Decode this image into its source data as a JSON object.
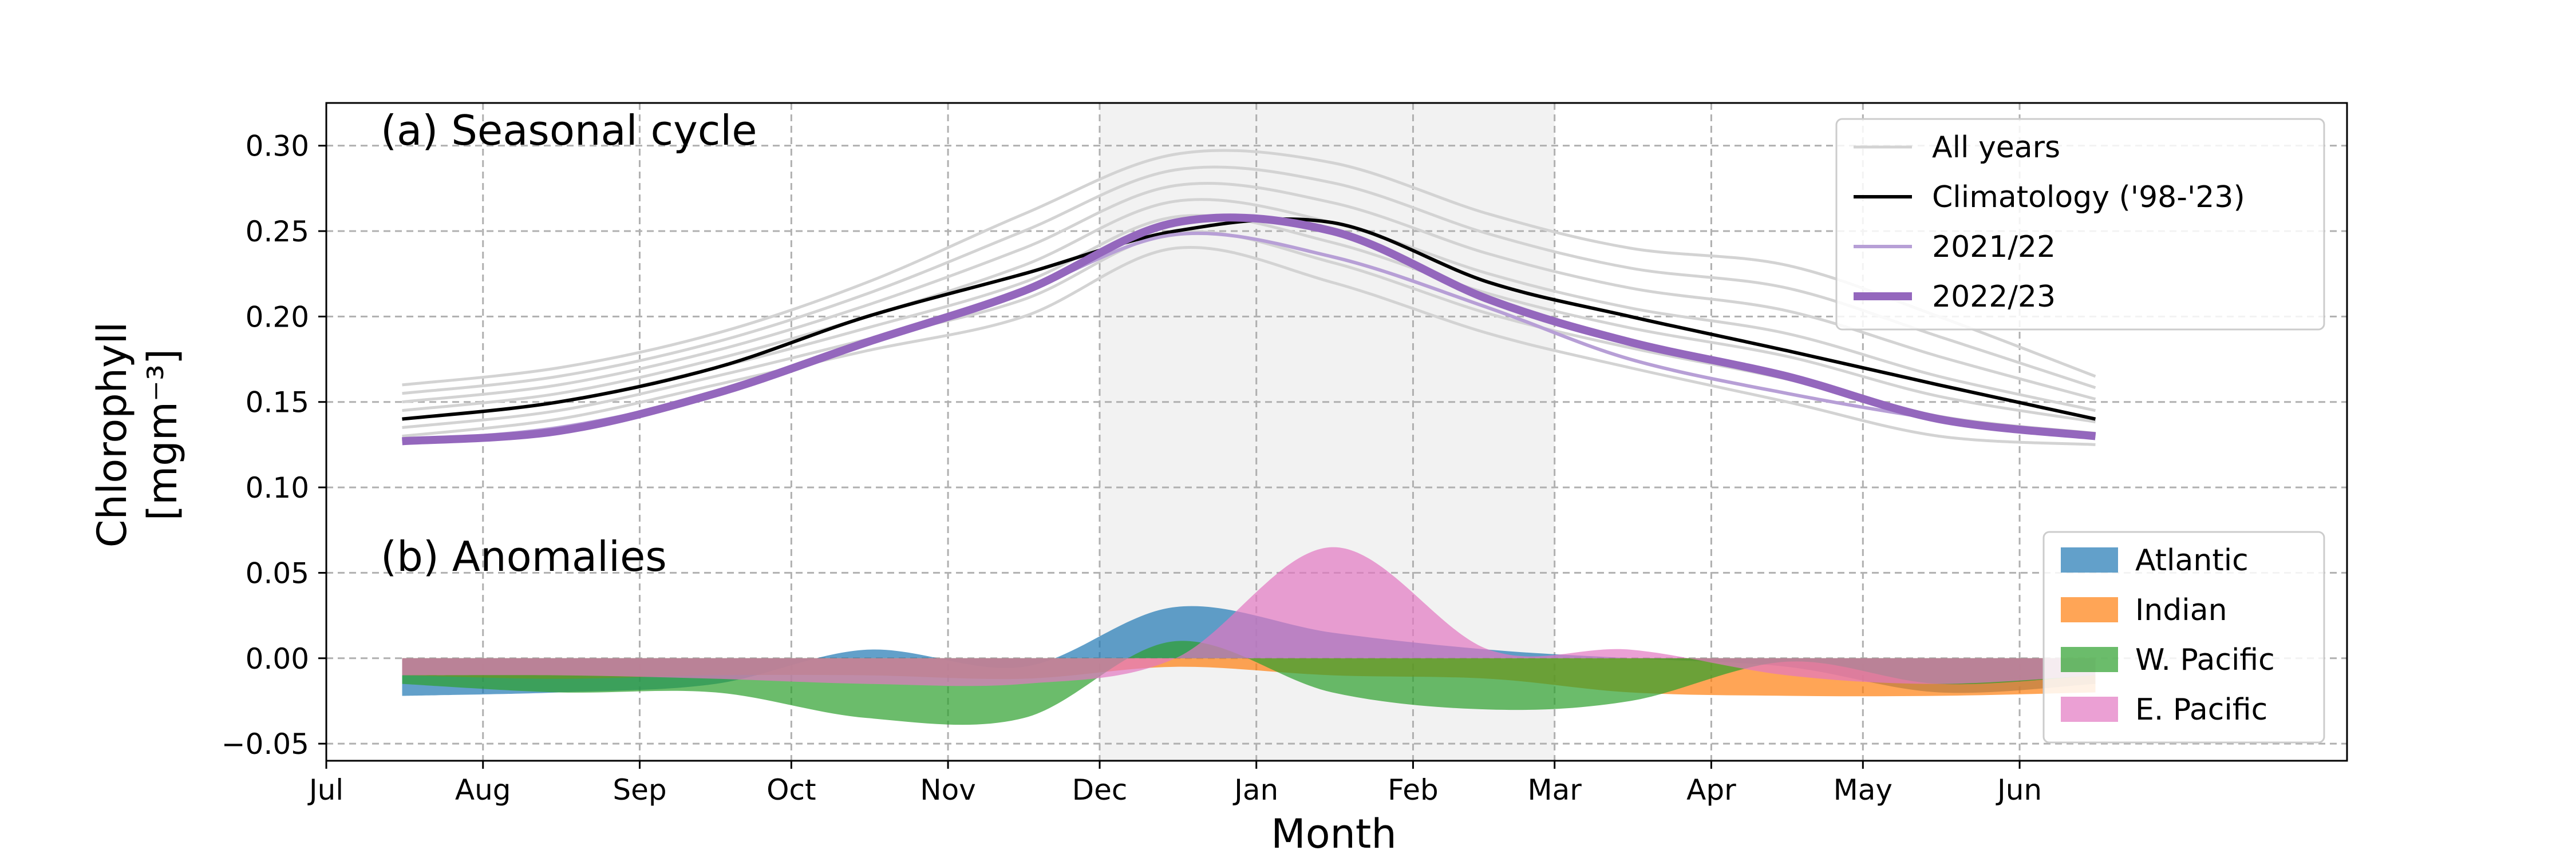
{
  "chart_data": {
    "type": "line",
    "xlabel": "Month",
    "ylabel_line1": "Chlorophyll",
    "ylabel_line2": "[mgm⁻³]",
    "ylim": [
      -0.06,
      0.325
    ],
    "x_range_months": [
      "Jul",
      "Jun"
    ],
    "xtick_labels": [
      "Jul",
      "Aug",
      "Sep",
      "Oct",
      "Nov",
      "Dec",
      "Jan",
      "Feb",
      "Mar",
      "Apr",
      "May",
      "Jun"
    ],
    "xtick_days": [
      0,
      31,
      62,
      92,
      123,
      153,
      184,
      215,
      243,
      274,
      304,
      335
    ],
    "ytick_values": [
      -0.05,
      0.0,
      0.05,
      0.1,
      0.15,
      0.2,
      0.25,
      0.3
    ],
    "ytick_labels": [
      "−0.05",
      "0.00",
      "0.05",
      "0.10",
      "0.15",
      "0.20",
      "0.25",
      "0.30"
    ],
    "shaded_period": [
      "Dec",
      "Mar"
    ],
    "grid": true,
    "panels": [
      {
        "label": "(a) Seasonal cycle",
        "legend_location": "upper right",
        "series": [
          {
            "name": "All years",
            "color": "#d3d3d3",
            "note": "spread of individual years",
            "x": [
              "Jul",
              "Aug",
              "Sep",
              "Oct",
              "Nov",
              "Dec",
              "Jan",
              "Feb",
              "Mar",
              "Apr",
              "May",
              "Jun"
            ],
            "lower": [
              0.13,
              0.14,
              0.16,
              0.18,
              0.2,
              0.24,
              0.22,
              0.19,
              0.17,
              0.15,
              0.13,
              0.125
            ],
            "upper": [
              0.16,
              0.17,
              0.19,
              0.22,
              0.26,
              0.295,
              0.29,
              0.26,
              0.24,
              0.23,
              0.2,
              0.165
            ]
          },
          {
            "name": "Climatology  ('98-'23)",
            "color": "#000000",
            "x": [
              "Jul",
              "Aug",
              "Sep",
              "Oct",
              "Nov",
              "Dec",
              "Jan",
              "Feb",
              "Mar",
              "Apr",
              "May",
              "Jun"
            ],
            "values": [
              0.14,
              0.15,
              0.17,
              0.2,
              0.225,
              0.25,
              0.255,
              0.22,
              0.2,
              0.18,
              0.16,
              0.14
            ]
          },
          {
            "name": "2021/22",
            "color": "#b79fd6",
            "x": [
              "Jul",
              "Aug",
              "Sep",
              "Oct",
              "Nov",
              "Dec",
              "Jan",
              "Feb",
              "Mar",
              "Apr",
              "May",
              "Jun"
            ],
            "values": [
              0.127,
              0.135,
              0.155,
              0.185,
              0.215,
              0.248,
              0.235,
              0.205,
              0.175,
              0.155,
              0.14,
              0.13
            ]
          },
          {
            "name": "2022/23",
            "color": "#9467bd",
            "x": [
              "Jul",
              "Aug",
              "Sep",
              "Oct",
              "Nov",
              "Dec",
              "Jan",
              "Feb",
              "Mar",
              "Apr",
              "May",
              "Jun"
            ],
            "values": [
              0.127,
              0.133,
              0.155,
              0.185,
              0.215,
              0.255,
              0.25,
              0.21,
              0.185,
              0.165,
              0.14,
              0.13
            ]
          }
        ]
      },
      {
        "label": "(b) Anomalies",
        "legend_location": "lower right",
        "type": "area",
        "series": [
          {
            "name": "Atlantic",
            "color": "#1f77b4",
            "x": [
              "Jul",
              "Aug",
              "Sep",
              "Oct",
              "Nov",
              "Dec",
              "Jan",
              "Feb",
              "Mar",
              "Apr",
              "May",
              "Jun"
            ],
            "values": [
              -0.022,
              -0.02,
              -0.015,
              0.005,
              -0.005,
              0.03,
              0.015,
              0.005,
              0.0,
              -0.005,
              -0.02,
              -0.015
            ]
          },
          {
            "name": "Indian",
            "color": "#ff7f0e",
            "x": [
              "Jul",
              "Aug",
              "Sep",
              "Oct",
              "Nov",
              "Dec",
              "Jan",
              "Feb",
              "Mar",
              "Apr",
              "May",
              "Jun"
            ],
            "values": [
              -0.01,
              -0.012,
              -0.01,
              -0.01,
              -0.012,
              -0.005,
              -0.01,
              -0.012,
              -0.02,
              -0.022,
              -0.022,
              -0.02
            ]
          },
          {
            "name": "W. Pacific",
            "color": "#2ca02c",
            "x": [
              "Jul",
              "Aug",
              "Sep",
              "Oct",
              "Nov",
              "Dec",
              "Jan",
              "Feb",
              "Mar",
              "Apr",
              "May",
              "Jun"
            ],
            "values": [
              -0.015,
              -0.02,
              -0.02,
              -0.035,
              -0.035,
              0.01,
              -0.02,
              -0.03,
              -0.025,
              -0.002,
              -0.015,
              -0.01
            ]
          },
          {
            "name": "E. Pacific",
            "color": "#e377c2",
            "x": [
              "Jul",
              "Aug",
              "Sep",
              "Oct",
              "Nov",
              "Dec",
              "Jan",
              "Feb",
              "Mar",
              "Apr",
              "May",
              "Jun"
            ],
            "values": [
              -0.01,
              -0.01,
              -0.012,
              -0.015,
              -0.015,
              0.0,
              0.065,
              0.005,
              0.005,
              -0.01,
              -0.015,
              -0.01
            ]
          }
        ]
      }
    ]
  }
}
